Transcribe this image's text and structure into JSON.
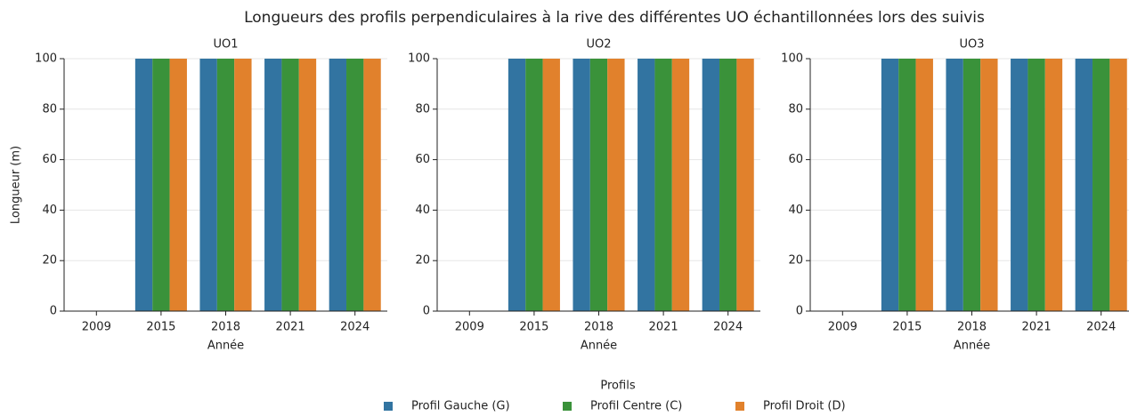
{
  "title": "Longueurs des profils perpendiculaires à la rive des différentes UO échantillonnées lors des suivis",
  "legend_title": "Profils",
  "chart_data": [
    {
      "type": "bar",
      "title": "UO1",
      "x_label": "Année",
      "y_label": "Longueur (m)",
      "categories": [
        "2009",
        "2015",
        "2018",
        "2021",
        "2024"
      ],
      "series": [
        {
          "name": "Profil Gauche (G)",
          "color": "#3274a1",
          "values": [
            0,
            100,
            100,
            100,
            100
          ]
        },
        {
          "name": "Profil Centre (C)",
          "color": "#3a923a",
          "values": [
            0,
            100,
            100,
            100,
            100
          ]
        },
        {
          "name": "Profil Droit (D)",
          "color": "#e1812c",
          "values": [
            0,
            100,
            100,
            100,
            100
          ]
        }
      ],
      "ylim": [
        0,
        100
      ],
      "yticks": [
        0,
        20,
        40,
        60,
        80,
        100
      ],
      "grid": true
    },
    {
      "type": "bar",
      "title": "UO2",
      "x_label": "Année",
      "categories": [
        "2009",
        "2015",
        "2018",
        "2021",
        "2024"
      ],
      "series": [
        {
          "name": "Profil Gauche (G)",
          "color": "#3274a1",
          "values": [
            0,
            100,
            100,
            100,
            100
          ]
        },
        {
          "name": "Profil Centre (C)",
          "color": "#3a923a",
          "values": [
            0,
            100,
            100,
            100,
            100
          ]
        },
        {
          "name": "Profil Droit (D)",
          "color": "#e1812c",
          "values": [
            0,
            100,
            100,
            100,
            100
          ]
        }
      ],
      "ylim": [
        0,
        100
      ],
      "yticks": [
        0,
        20,
        40,
        60,
        80,
        100
      ],
      "grid": true
    },
    {
      "type": "bar",
      "title": "UO3",
      "x_label": "Année",
      "categories": [
        "2009",
        "2015",
        "2018",
        "2021",
        "2024"
      ],
      "series": [
        {
          "name": "Profil Gauche (G)",
          "color": "#3274a1",
          "values": [
            0,
            100,
            100,
            100,
            100
          ]
        },
        {
          "name": "Profil Centre (C)",
          "color": "#3a923a",
          "values": [
            0,
            100,
            100,
            100,
            100
          ]
        },
        {
          "name": "Profil Droit (D)",
          "color": "#e1812c",
          "values": [
            0,
            100,
            100,
            100,
            100
          ]
        }
      ],
      "ylim": [
        0,
        100
      ],
      "yticks": [
        0,
        20,
        40,
        60,
        80,
        100
      ],
      "grid": true
    }
  ]
}
